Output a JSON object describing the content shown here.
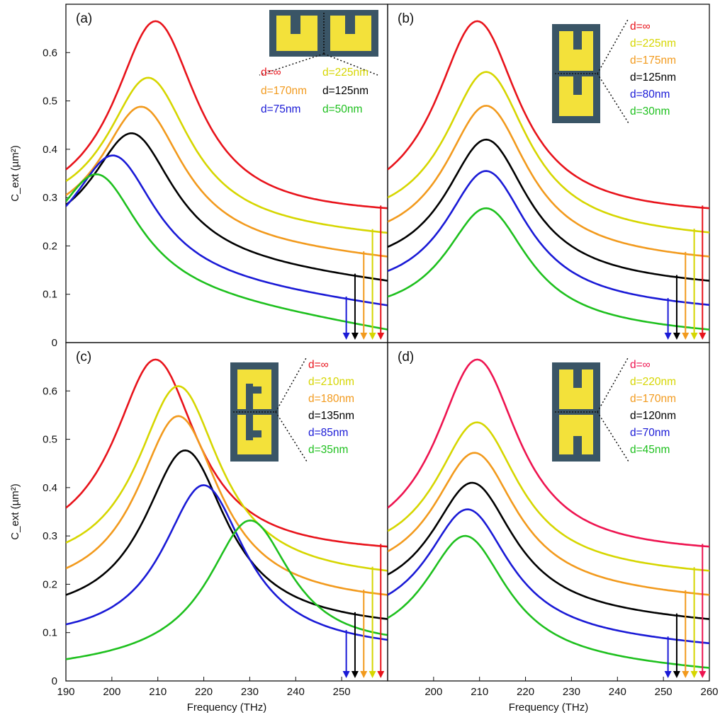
{
  "chart_data": [
    {
      "type": "line",
      "panel": "(a)",
      "xlim": [
        190,
        260
      ],
      "ylim": [
        0,
        0.7
      ],
      "ylabel": "C_ext (µm²)",
      "xlabel": "",
      "yticks": [
        0,
        0.1,
        0.2,
        0.3,
        0.4,
        0.5,
        0.6
      ],
      "xticks": [],
      "inset": "side",
      "series": [
        {
          "name": "d=∞",
          "color": "#e8131b",
          "peak_x": 209.5,
          "peak_y": 0.665,
          "start_y": 0.358,
          "end_y": 0.278,
          "arrow_x": 258.5
        },
        {
          "name": "d=225nm",
          "color": "#d6d600",
          "peak_x": 208,
          "peak_y": 0.548,
          "start_y": 0.334,
          "end_y": 0.227,
          "arrow_x": 256.7
        },
        {
          "name": "d=170nm",
          "color": "#f29a1d",
          "peak_x": 206.5,
          "peak_y": 0.488,
          "start_y": 0.305,
          "end_y": 0.178,
          "arrow_x": 254.8
        },
        {
          "name": "d=125nm",
          "color": "#000000",
          "peak_x": 204.5,
          "peak_y": 0.433,
          "start_y": 0.285,
          "end_y": 0.128,
          "arrow_x": 252.9
        },
        {
          "name": "d=75nm",
          "color": "#1a1ad6",
          "peak_x": 200.5,
          "peak_y": 0.387,
          "start_y": 0.282,
          "end_y": 0.077,
          "arrow_x": 251.0
        },
        {
          "name": "d=50nm",
          "color": "#1ec01e",
          "peak_x": 197,
          "peak_y": 0.348,
          "start_y": 0.292,
          "end_y": 0.027,
          "arrow_x": null
        }
      ]
    },
    {
      "type": "line",
      "panel": "(b)",
      "xlim": [
        190,
        260
      ],
      "ylim": [
        0,
        0.7
      ],
      "ylabel": "",
      "xlabel": "",
      "yticks": [],
      "xticks": [],
      "inset": "stacked",
      "series": [
        {
          "name": "d=∞",
          "color": "#e8131b",
          "peak_x": 209.5,
          "peak_y": 0.665,
          "start_y": 0.358,
          "end_y": 0.278,
          "arrow_x": 258.5
        },
        {
          "name": "d=225nm",
          "color": "#d6d600",
          "peak_x": 211.5,
          "peak_y": 0.56,
          "start_y": 0.3,
          "end_y": 0.228,
          "arrow_x": 256.7
        },
        {
          "name": "d=175nm",
          "color": "#f29a1d",
          "peak_x": 211.5,
          "peak_y": 0.49,
          "start_y": 0.25,
          "end_y": 0.178,
          "arrow_x": 254.8
        },
        {
          "name": "d=125nm",
          "color": "#000000",
          "peak_x": 211.5,
          "peak_y": 0.42,
          "start_y": 0.198,
          "end_y": 0.128,
          "arrow_x": 252.9
        },
        {
          "name": "d=80nm",
          "color": "#1a1ad6",
          "peak_x": 211.5,
          "peak_y": 0.355,
          "start_y": 0.148,
          "end_y": 0.078,
          "arrow_x": 251.0
        },
        {
          "name": "d=30nm",
          "color": "#1ec01e",
          "peak_x": 211.5,
          "peak_y": 0.278,
          "start_y": 0.095,
          "end_y": 0.027,
          "arrow_x": null
        }
      ]
    },
    {
      "type": "line",
      "panel": "(c)",
      "xlim": [
        190,
        260
      ],
      "ylim": [
        0,
        0.7
      ],
      "ylabel": "C_ext (µm²)",
      "xlabel": "Frequency (THz)",
      "yticks": [
        0,
        0.1,
        0.2,
        0.3,
        0.4,
        0.5,
        0.6
      ],
      "xticks": [
        190,
        200,
        210,
        220,
        230,
        240,
        250
      ],
      "inset": "offset",
      "series": [
        {
          "name": "d=∞",
          "color": "#e8131b",
          "peak_x": 209.5,
          "peak_y": 0.665,
          "start_y": 0.358,
          "end_y": 0.278,
          "arrow_x": 258.5
        },
        {
          "name": "d=210nm",
          "color": "#d6d600",
          "peak_x": 214.5,
          "peak_y": 0.61,
          "start_y": 0.286,
          "end_y": 0.228,
          "arrow_x": 256.7
        },
        {
          "name": "d=180nm",
          "color": "#f29a1d",
          "peak_x": 214.5,
          "peak_y": 0.548,
          "start_y": 0.233,
          "end_y": 0.178,
          "arrow_x": 254.8
        },
        {
          "name": "d=135nm",
          "color": "#000000",
          "peak_x": 216,
          "peak_y": 0.477,
          "start_y": 0.178,
          "end_y": 0.128,
          "arrow_x": 252.9
        },
        {
          "name": "d=85nm",
          "color": "#1a1ad6",
          "peak_x": 220,
          "peak_y": 0.405,
          "start_y": 0.117,
          "end_y": 0.085,
          "arrow_x": 251.0
        },
        {
          "name": "d=35nm",
          "color": "#1ec01e",
          "peak_x": 230,
          "peak_y": 0.332,
          "start_y": 0.045,
          "end_y": 0.095,
          "arrow_x": null
        }
      ]
    },
    {
      "type": "line",
      "panel": "(d)",
      "xlim": [
        190,
        260
      ],
      "ylim": [
        0,
        0.7
      ],
      "ylabel": "",
      "xlabel": "Frequency (THz)",
      "yticks": [],
      "xticks": [
        200,
        210,
        220,
        230,
        240,
        250,
        260
      ],
      "inset": "mirror",
      "series": [
        {
          "name": "d=∞",
          "color": "#ee1450",
          "peak_x": 209.5,
          "peak_y": 0.665,
          "start_y": 0.358,
          "end_y": 0.278,
          "arrow_x": 258.5
        },
        {
          "name": "d=220nm",
          "color": "#d6d600",
          "peak_x": 209.5,
          "peak_y": 0.535,
          "start_y": 0.31,
          "end_y": 0.228,
          "arrow_x": 256.7
        },
        {
          "name": "d=170nm",
          "color": "#f29a1d",
          "peak_x": 209,
          "peak_y": 0.472,
          "start_y": 0.268,
          "end_y": 0.178,
          "arrow_x": 254.8
        },
        {
          "name": "d=120nm",
          "color": "#000000",
          "peak_x": 208.5,
          "peak_y": 0.41,
          "start_y": 0.22,
          "end_y": 0.128,
          "arrow_x": 252.9
        },
        {
          "name": "d=70nm",
          "color": "#1a1ad6",
          "peak_x": 207.5,
          "peak_y": 0.355,
          "start_y": 0.178,
          "end_y": 0.078,
          "arrow_x": 251.0
        },
        {
          "name": "d=45nm",
          "color": "#1ec01e",
          "peak_x": 207,
          "peak_y": 0.3,
          "start_y": 0.13,
          "end_y": 0.027,
          "arrow_x": null
        }
      ]
    }
  ]
}
